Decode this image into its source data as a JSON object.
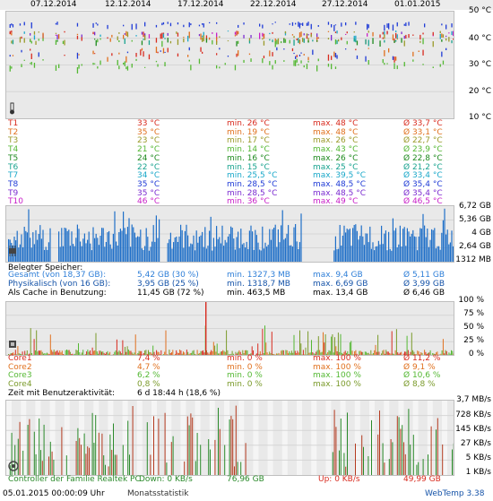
{
  "dates": [
    "07.12.2014",
    "12.12.2014",
    "17.12.2014",
    "22.12.2014",
    "27.12.2014",
    "01.01.2015"
  ],
  "temp_chart": {
    "axis": [
      "50 °C",
      "40 °C",
      "30 °C",
      "20 °C",
      "10 °C"
    ],
    "rows": [
      {
        "name": "T1",
        "cur": "33 °C",
        "min": "min. 26 °C",
        "max": "max. 48 °C",
        "avg": "Ø 33,7 °C",
        "color": "#d82b1f"
      },
      {
        "name": "T2",
        "cur": "35 °C",
        "min": "min. 19 °C",
        "max": "max. 48 °C",
        "avg": "Ø 33,1 °C",
        "color": "#e0701e"
      },
      {
        "name": "T3",
        "cur": "23 °C",
        "min": "min. 17 °C",
        "max": "max. 26 °C",
        "avg": "Ø 22,7 °C",
        "color": "#9a9a2a"
      },
      {
        "name": "T4",
        "cur": "21 °C",
        "min": "min. 14 °C",
        "max": "max. 43 °C",
        "avg": "Ø 23,9 °C",
        "color": "#54b833"
      },
      {
        "name": "T5",
        "cur": "24 °C",
        "min": "min. 16 °C",
        "max": "max. 26 °C",
        "avg": "Ø 22,8 °C",
        "color": "#1e8a1e"
      },
      {
        "name": "T6",
        "cur": "22 °C",
        "min": "min. 15 °C",
        "max": "max. 25 °C",
        "avg": "Ø 21,2 °C",
        "color": "#19a38f"
      },
      {
        "name": "T7",
        "cur": "34 °C",
        "min": "min. 25,5 °C",
        "max": "max. 39,5 °C",
        "avg": "Ø 33,4 °C",
        "color": "#1aa8c9"
      },
      {
        "name": "T8",
        "cur": "35 °C",
        "min": "min. 28,5 °C",
        "max": "max. 48,5 °C",
        "avg": "Ø 35,4 °C",
        "color": "#1f3bd6"
      },
      {
        "name": "T9",
        "cur": "35 °C",
        "min": "min. 28,5 °C",
        "max": "max. 48,5 °C",
        "avg": "Ø 35,4 °C",
        "color": "#7a2bd0"
      },
      {
        "name": "T10",
        "cur": "46 °C",
        "min": "min. 36 °C",
        "max": "max. 49 °C",
        "avg": "Ø 46,5 °C",
        "color": "#c81fc8"
      }
    ]
  },
  "mem_chart": {
    "axis": [
      "6,72 GB",
      "5,36 GB",
      "4 GB",
      "2,64 GB",
      "1312 MB"
    ],
    "heading": "Belegter Speicher:",
    "rows": [
      {
        "name": "Gesamt (von 18,37 GB):",
        "cur": "5,42 GB (30 %)",
        "min": "min. 1327,3 MB",
        "max": "max. 9,4 GB",
        "avg": "Ø 5,11 GB",
        "color": "#2f7fd8"
      },
      {
        "name": "Physikalisch (von 16 GB):",
        "cur": "3,95 GB (25 %)",
        "min": "min. 1318,7 MB",
        "max": "max. 6,69 GB",
        "avg": "Ø 3,99 GB",
        "color": "#1553a8"
      },
      {
        "name": "Als Cache in Benutzung:",
        "cur": "11,45 GB (72 %)",
        "min": "min. 463,5 MB",
        "max": "max. 13,4 GB",
        "avg": "Ø 6,46 GB",
        "color": "#000000"
      }
    ]
  },
  "cpu_chart": {
    "axis": [
      "100 %",
      "75 %",
      "50 %",
      "25 %",
      "0 %"
    ],
    "rows": [
      {
        "name": "Core1",
        "cur": "7,4 %",
        "min": "min. 0 %",
        "max": "max. 100 %",
        "avg": "Ø 11,2 %",
        "color": "#d82b1f"
      },
      {
        "name": "Core2",
        "cur": "4,7 %",
        "min": "min. 0 %",
        "max": "max. 100 %",
        "avg": "Ø 9,1 %",
        "color": "#e0701e"
      },
      {
        "name": "Core3",
        "cur": "6,2 %",
        "min": "min. 0 %",
        "max": "max. 100 %",
        "avg": "Ø 10,6 %",
        "color": "#54b833"
      },
      {
        "name": "Core4",
        "cur": "0,8 %",
        "min": "min. 0 %",
        "max": "max. 100 %",
        "avg": "Ø 8,8 %",
        "color": "#7a9a2a"
      }
    ],
    "activity_label": "Zeit mit Benutzeraktivität:",
    "activity_value": "6 d 18:44 h (18,6 %)"
  },
  "net_chart": {
    "axis": [
      "3,7 MB/s",
      "728 KB/s",
      "145 KB/s",
      "27 KB/s",
      "5 KB/s",
      "1 KB/s"
    ],
    "controller": "Controller der Familie Realtek PC",
    "down": "Down: 0 KB/s",
    "down_total": "76,96 GB",
    "up": "Up: 0 KB/s",
    "up_total": "49,99 GB"
  },
  "footer": {
    "timestamp": "05.01.2015 00:00:09 Uhr",
    "link": "Monatsstatistik",
    "brand": "WebTemp 3.38"
  }
}
